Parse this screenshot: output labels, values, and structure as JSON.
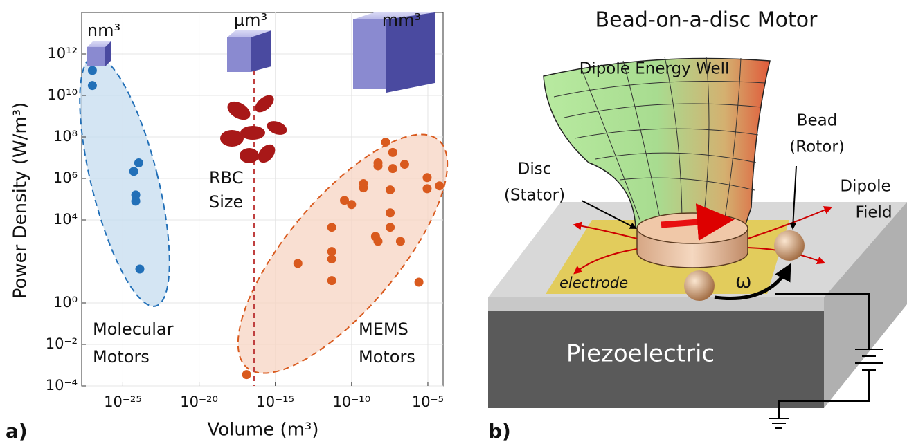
{
  "chart_data": {
    "type": "scatter",
    "xlabel": "Volume (m³)",
    "ylabel": "Power Density (W/m³)",
    "panel_label": "a)",
    "xscale": "log",
    "yscale": "log",
    "grid": true,
    "xlim": [
      2e-28,
      0.0001
    ],
    "ylim": [
      0.0001,
      100000000000000.0
    ],
    "xticks": [
      {
        "value": 1e-25,
        "label": "10⁻²⁵"
      },
      {
        "value": 1e-20,
        "label": "10⁻²⁰"
      },
      {
        "value": 1e-15,
        "label": "10⁻¹⁵"
      },
      {
        "value": 1e-10,
        "label": "10⁻¹⁰"
      },
      {
        "value": 1e-05,
        "label": "10⁻⁵"
      }
    ],
    "yticks": [
      {
        "value": 1000000000000.0,
        "label": "10¹²"
      },
      {
        "value": 10000000000.0,
        "label": "10¹⁰"
      },
      {
        "value": 100000000.0,
        "label": "10⁸"
      },
      {
        "value": 1000000.0,
        "label": "10⁶"
      },
      {
        "value": 10000.0,
        "label": "10⁴"
      },
      {
        "value": 1,
        "label": "10⁰"
      },
      {
        "value": 0.01,
        "label": "10⁻²"
      },
      {
        "value": 0.0001,
        "label": "10⁻⁴"
      }
    ],
    "series": [
      {
        "color": "#2270b8",
        "x": [
          1e-27,
          1e-27,
          1.1e-24,
          5.2e-25,
          7e-25,
          7e-25,
          1.3e-24
        ],
        "y": [
          160000000000.0,
          30000000000.0,
          5600000.0,
          2200000.0,
          160000.0,
          80000.0,
          43
        ]
      },
      {
        "color": "#d95a1e",
        "x": [
          1.3e-17,
          3e-14,
          5e-12,
          5e-12,
          5e-12,
          5e-12,
          3.4e-11,
          1e-10,
          6e-10,
          6e-10,
          5.4e-09,
          5.4e-09,
          1.7e-08,
          5e-08,
          3e-07,
          5e-08,
          3.4e-08,
          3.4e-08,
          3.4e-08,
          1.6e-07,
          3.7e-09,
          5.4e-09,
          9e-06,
          9e-06,
          5.8e-05,
          2.6e-06
        ],
        "y": [
          0.00035,
          80,
          12,
          130,
          300,
          4400,
          87000.0,
          55000.0,
          350000.0,
          560000.0,
          4000000.0,
          5600000.0,
          56000000.0,
          18000000.0,
          4800000.0,
          3000000.0,
          280000.0,
          22000.0,
          4400.0,
          930,
          1600,
          930,
          1100000.0,
          320000.0,
          440000.0,
          10
        ]
      }
    ],
    "annotations": {
      "nm": "nm³",
      "um": "µm³",
      "mm": "mm³",
      "rbc": [
        "RBC",
        "Size"
      ],
      "molecular": [
        "Molecular",
        "Motors"
      ],
      "mems": [
        "MEMS",
        "Motors"
      ]
    }
  },
  "diagram": {
    "title": "Bead-on-a-disc Motor",
    "well": "Dipole Energy Well",
    "bead": [
      "Bead",
      "(Rotor)"
    ],
    "disc": [
      "Disc",
      "(Stator)"
    ],
    "field": [
      "Dipole",
      "Field"
    ],
    "electrode": "electrode",
    "omega": "ω",
    "substrate": "Piezoelectric",
    "panel_label": "b)"
  }
}
